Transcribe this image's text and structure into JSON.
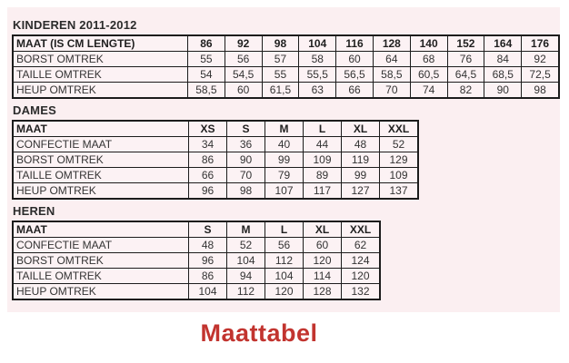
{
  "title": "Maattabel",
  "colors": {
    "accent_red": "#c2342f",
    "sheet_pink": "#fbeff1",
    "table_border": "#1c1c1c",
    "text": "#333333"
  },
  "sections": [
    {
      "heading": "KINDEREN 2011-2012",
      "header_row": {
        "label": "MAAT (IS CM LENGTE)",
        "cols": [
          "86",
          "92",
          "98",
          "104",
          "116",
          "128",
          "140",
          "152",
          "164",
          "176"
        ]
      },
      "rows": [
        {
          "label": "BORST OMTREK",
          "values": [
            "55",
            "56",
            "57",
            "58",
            "60",
            "64",
            "68",
            "76",
            "84",
            "92"
          ]
        },
        {
          "label": "TAILLE OMTREK",
          "values": [
            "54",
            "54,5",
            "55",
            "55,5",
            "56,5",
            "58,5",
            "60,5",
            "64,5",
            "68,5",
            "72,5"
          ]
        },
        {
          "label": "HEUP OMTREK",
          "values": [
            "58,5",
            "60",
            "61,5",
            "63",
            "66",
            "70",
            "74",
            "82",
            "90",
            "98"
          ]
        }
      ]
    },
    {
      "heading": "DAMES",
      "header_row": {
        "label": "MAAT",
        "cols": [
          "XS",
          "S",
          "M",
          "L",
          "XL",
          "XXL"
        ]
      },
      "rows": [
        {
          "label": "CONFECTIE MAAT",
          "values": [
            "34",
            "36",
            "40",
            "44",
            "48",
            "52"
          ]
        },
        {
          "label": "BORST OMTREK",
          "values": [
            "86",
            "90",
            "99",
            "109",
            "119",
            "129"
          ]
        },
        {
          "label": "TAILLE OMTREK",
          "values": [
            "66",
            "70",
            "79",
            "89",
            "99",
            "109"
          ]
        },
        {
          "label": "HEUP OMTREK",
          "values": [
            "96",
            "98",
            "107",
            "117",
            "127",
            "137"
          ]
        }
      ]
    },
    {
      "heading": "HEREN",
      "header_row": {
        "label": "MAAT",
        "cols": [
          "S",
          "M",
          "L",
          "XL",
          "XXL"
        ]
      },
      "rows": [
        {
          "label": "CONFECTIE MAAT",
          "values": [
            "48",
            "52",
            "56",
            "60",
            "62"
          ]
        },
        {
          "label": "BORST OMTREK",
          "values": [
            "96",
            "104",
            "112",
            "120",
            "124"
          ]
        },
        {
          "label": "TAILLE OMTREK",
          "values": [
            "86",
            "94",
            "104",
            "114",
            "120"
          ]
        },
        {
          "label": "HEUP OMTREK",
          "values": [
            "104",
            "112",
            "120",
            "128",
            "132"
          ]
        }
      ]
    }
  ]
}
